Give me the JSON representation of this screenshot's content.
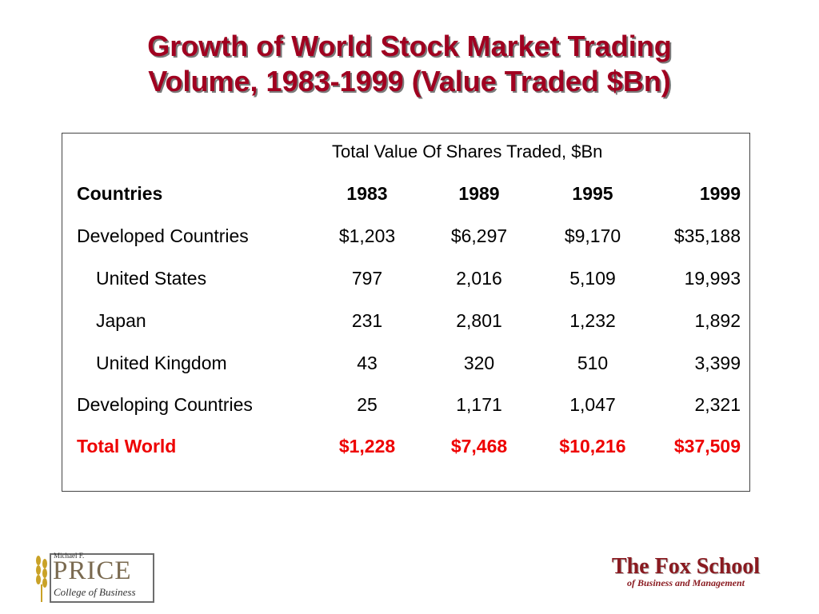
{
  "title": {
    "line1": "Growth of World Stock Market Trading",
    "line2": "Volume, 1983-1999 (Value Traded $Bn)"
  },
  "table": {
    "span_header": "Total Value Of Shares Traded, $Bn",
    "col_header": {
      "label": "Countries",
      "years": [
        "1983",
        "1989",
        "1995",
        "1999"
      ]
    },
    "rows": [
      {
        "label": "Developed Countries",
        "values": [
          "$1,203",
          "$6,297",
          "$9,170",
          "$35,188"
        ]
      },
      {
        "label": "United States",
        "values": [
          "797",
          "2,016",
          "5,109",
          "19,993"
        ]
      },
      {
        "label": "Japan",
        "values": [
          "231",
          "2,801",
          "1,232",
          "1,892"
        ]
      },
      {
        "label": "United Kingdom",
        "values": [
          "43",
          "320",
          "510",
          "3,399"
        ]
      },
      {
        "label": "Developing Countries",
        "values": [
          "25",
          "1,171",
          "1,047",
          "2,321"
        ]
      },
      {
        "label": "Total World",
        "values": [
          "$1,228",
          "$7,468",
          "$10,216",
          "$37,509"
        ]
      }
    ]
  },
  "logos": {
    "price": {
      "top": "Michael F.",
      "main": "PRICE",
      "sub": "College of Business"
    },
    "fox": {
      "main": "The Fox School",
      "sub": "of Business and Management"
    }
  },
  "colors": {
    "title": "#a00020",
    "total_row": "#ee0000"
  }
}
